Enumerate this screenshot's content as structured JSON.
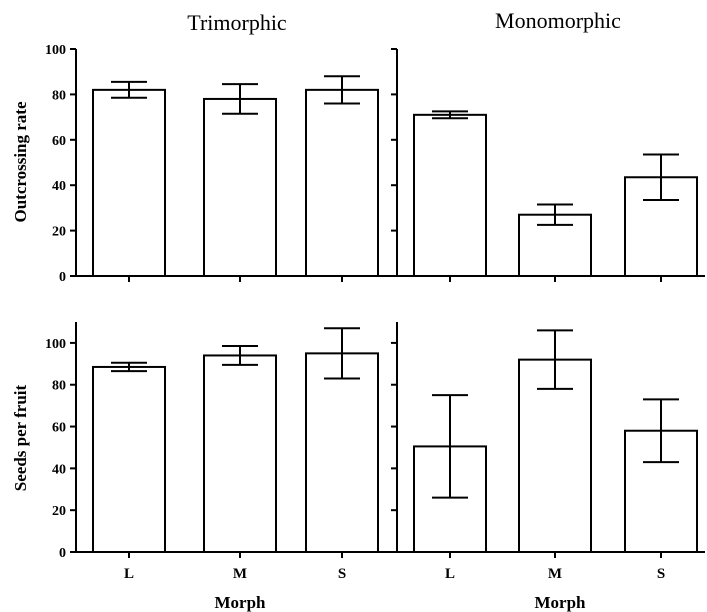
{
  "chart_data": [
    {
      "type": "bar",
      "title": "Trimorphic",
      "ylabel": "Outcrossing rate",
      "categories": [
        "L",
        "M",
        "S"
      ],
      "values": [
        82,
        78,
        82
      ],
      "error": [
        3.5,
        6.5,
        6
      ],
      "ylim": [
        0,
        100
      ],
      "yticks": [
        "0",
        "20",
        "40",
        "60",
        "80",
        "100"
      ],
      "show_ytick_labels": true
    },
    {
      "type": "bar",
      "title": "Monomorphic",
      "ylabel": "",
      "categories": [
        "L",
        "M",
        "S"
      ],
      "values": [
        71,
        27,
        43.5
      ],
      "error": [
        1.5,
        4.5,
        10
      ],
      "ylim": [
        0,
        100
      ],
      "yticks": [
        "0",
        "20",
        "40",
        "60",
        "80",
        "100"
      ],
      "show_ytick_labels": false
    },
    {
      "type": "bar",
      "title": "",
      "ylabel": "Seeds per fruit",
      "categories": [
        "L",
        "M",
        "S"
      ],
      "values": [
        88.5,
        94,
        95
      ],
      "error": [
        2,
        4.5,
        12
      ],
      "xlabel": "Morph",
      "ylim": [
        0,
        110
      ],
      "yticks": [
        "0",
        "20",
        "40",
        "60",
        "80",
        "100"
      ],
      "show_ytick_labels": true
    },
    {
      "type": "bar",
      "title": "",
      "ylabel": "",
      "categories": [
        "L",
        "M",
        "S"
      ],
      "values": [
        50.5,
        92,
        58
      ],
      "error": [
        24.5,
        14,
        15
      ],
      "xlabel": "Morph",
      "ylim": [
        0,
        110
      ],
      "yticks": [
        "0",
        "20",
        "40",
        "60",
        "80",
        "100"
      ],
      "show_ytick_labels": false
    }
  ]
}
